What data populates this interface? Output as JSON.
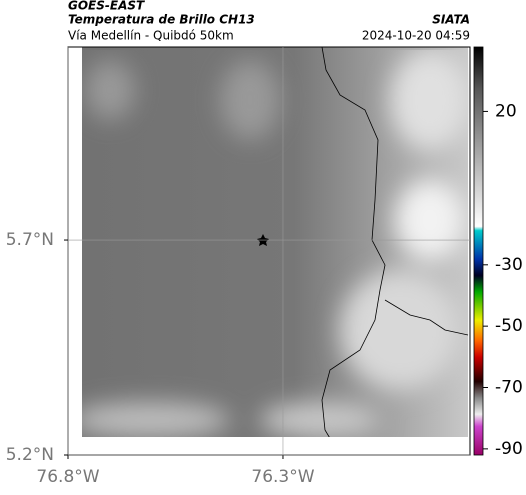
{
  "header": {
    "title": "GOES-EAST",
    "subtitle": "Temperatura de Brillo CH13",
    "region": "Vía Medellín - Quibdó 50km",
    "source": "SIATA",
    "timestamp": "2024-10-20 04:59"
  },
  "map": {
    "xlim": [
      -76.8,
      -75.865
    ],
    "ylim": [
      5.2,
      6.149
    ],
    "xticks": [
      {
        "value": -76.8,
        "label": "76.8°W"
      },
      {
        "value": -76.3,
        "label": "76.3°W"
      }
    ],
    "yticks": [
      {
        "value": 5.7,
        "label": "5.7°N"
      },
      {
        "value": 5.2,
        "label": "5.2°N"
      }
    ]
  },
  "colorbar": {
    "lim": [
      -92,
      41
    ],
    "ticks": [
      20,
      -30,
      -50,
      -70,
      -90
    ]
  }
}
